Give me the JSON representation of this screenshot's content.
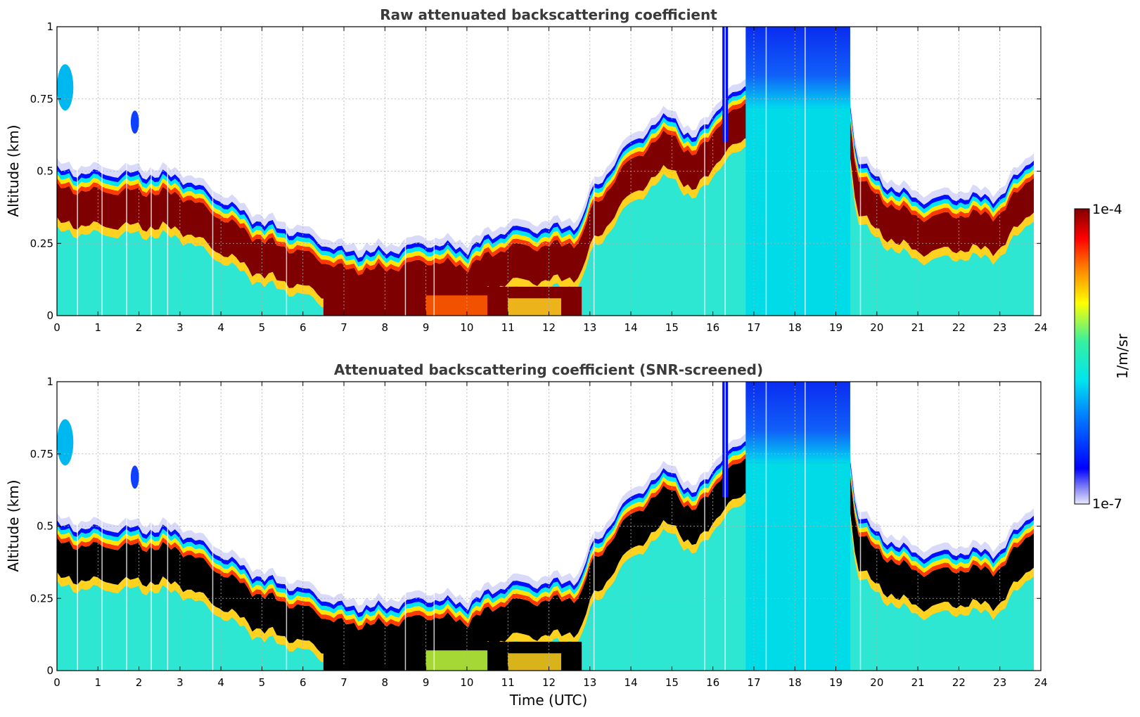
{
  "chart_data": [
    {
      "type": "heatmap",
      "title": "Raw attenuated backscattering coefficient",
      "xlabel": "",
      "ylabel": "Altitude (km)",
      "xlim": [
        0,
        24
      ],
      "ylim": [
        0,
        1
      ],
      "x_ticks": [
        "0",
        "1",
        "2",
        "3",
        "4",
        "5",
        "6",
        "7",
        "8",
        "9",
        "10",
        "11",
        "12",
        "13",
        "14",
        "15",
        "16",
        "17",
        "18",
        "19",
        "20",
        "21",
        "22",
        "23",
        "24"
      ],
      "y_ticks": [
        "0",
        "0.25",
        "0.5",
        "0.75",
        "1"
      ],
      "grid": true,
      "colormap": "jet-like with light lavender at minimum",
      "cloud_base_km": {
        "time_utc": [
          0,
          1,
          2,
          3,
          4,
          5,
          6,
          7,
          8,
          9,
          10,
          11,
          12,
          12.8,
          13,
          14,
          15,
          15.5,
          16,
          16.8,
          19.3,
          19.5,
          20,
          21,
          22,
          23,
          23.8
        ],
        "altitude_km": [
          0.4,
          0.39,
          0.39,
          0.38,
          0.3,
          0.22,
          0.18,
          0.12,
          0.12,
          0.15,
          0.13,
          0.2,
          0.2,
          0.22,
          0.32,
          0.5,
          0.6,
          0.5,
          0.6,
          0.7,
          0.7,
          0.45,
          0.37,
          0.3,
          0.31,
          0.31,
          0.45
        ]
      },
      "saturated_low_level_fog_utc": [
        6.5,
        12.8
      ]
    },
    {
      "type": "heatmap",
      "title": "Attenuated backscattering coefficient (SNR-screened)",
      "xlabel": "Time (UTC)",
      "ylabel": "Altitude (km)",
      "xlim": [
        0,
        24
      ],
      "ylim": [
        0,
        1
      ],
      "x_ticks": [
        "0",
        "1",
        "2",
        "3",
        "4",
        "5",
        "6",
        "7",
        "8",
        "9",
        "10",
        "11",
        "12",
        "13",
        "14",
        "15",
        "16",
        "17",
        "18",
        "19",
        "20",
        "21",
        "22",
        "23",
        "24"
      ],
      "y_ticks": [
        "0",
        "0.25",
        "0.5",
        "0.75",
        "1"
      ],
      "grid": true,
      "screened_color": "#000000"
    }
  ],
  "colorbar": {
    "label": "1/m/sr",
    "max_label": "1e-4",
    "min_label": "1e-7",
    "colors": [
      "#e8e8fb",
      "#0000ff",
      "#00e5ee",
      "#36f0a0",
      "#ffff00",
      "#ff7f00",
      "#ff0000",
      "#800000"
    ]
  }
}
